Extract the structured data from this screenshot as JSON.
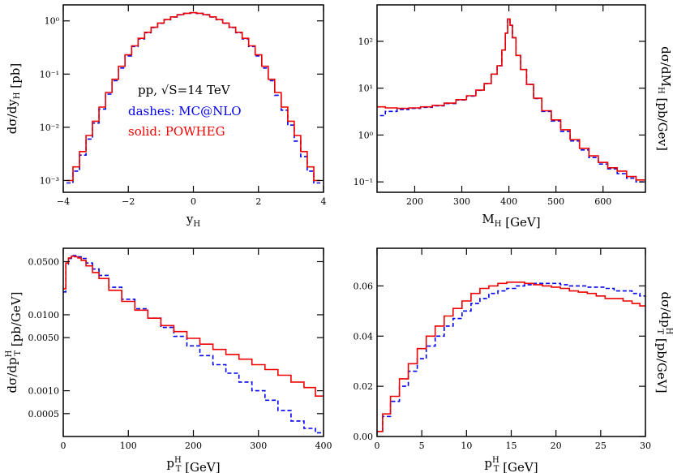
{
  "colors": {
    "mcatnlo": "#0000ee",
    "powheg": "#ee0000",
    "axis": "#000000"
  },
  "annotation": {
    "line1": "pp, √S=14 TeV",
    "line2": "dashes: MC@NLO",
    "line3": "solid: POWHEG"
  },
  "chart_data": [
    {
      "type": "line",
      "xlabel": "y",
      "xlabel_sub": "H",
      "ylabel": "dσ/dy",
      "ylabel_sub": "H",
      "ylabel_unit": "[pb]",
      "yscale": "log",
      "xlim": [
        -4,
        4
      ],
      "ylim": [
        0.0006,
        2.0
      ],
      "x_ticks": [
        -4,
        -2,
        0,
        2,
        4
      ],
      "x_tick_labels": [
        "−4",
        "−2",
        "0",
        "2",
        "4"
      ],
      "y_ticks": [
        0.001,
        0.01,
        0.1,
        1
      ],
      "y_tick_labels": [
        "10⁻³",
        "10⁻²",
        "10⁻¹",
        "10⁰"
      ],
      "draw": "step",
      "series": [
        {
          "name": "MC@NLO",
          "style": "dashed",
          "x": [
            -3.8,
            -3.6,
            -3.4,
            -3.2,
            -3.0,
            -2.8,
            -2.6,
            -2.4,
            -2.2,
            -2.0,
            -1.8,
            -1.6,
            -1.4,
            -1.2,
            -1.0,
            -0.8,
            -0.6,
            -0.4,
            -0.2,
            0.0,
            0.2,
            0.4,
            0.6,
            0.8,
            1.0,
            1.2,
            1.4,
            1.6,
            1.8,
            2.0,
            2.2,
            2.4,
            2.6,
            2.8,
            3.0,
            3.2,
            3.4,
            3.6,
            3.8
          ],
          "y": [
            0.0009,
            0.0015,
            0.003,
            0.006,
            0.012,
            0.022,
            0.042,
            0.075,
            0.13,
            0.22,
            0.33,
            0.46,
            0.6,
            0.75,
            0.9,
            1.05,
            1.18,
            1.3,
            1.38,
            1.42,
            1.38,
            1.3,
            1.18,
            1.05,
            0.9,
            0.75,
            0.6,
            0.46,
            0.33,
            0.22,
            0.13,
            0.075,
            0.04,
            0.021,
            0.011,
            0.0055,
            0.0028,
            0.0015,
            0.0009
          ]
        },
        {
          "name": "POWHEG",
          "style": "solid",
          "x": [
            -3.8,
            -3.6,
            -3.4,
            -3.2,
            -3.0,
            -2.8,
            -2.6,
            -2.4,
            -2.2,
            -2.0,
            -1.8,
            -1.6,
            -1.4,
            -1.2,
            -1.0,
            -0.8,
            -0.6,
            -0.4,
            -0.2,
            0.0,
            0.2,
            0.4,
            0.6,
            0.8,
            1.0,
            1.2,
            1.4,
            1.6,
            1.8,
            2.0,
            2.2,
            2.4,
            2.6,
            2.8,
            3.0,
            3.2,
            3.4,
            3.6,
            3.8
          ],
          "y": [
            0.001,
            0.0018,
            0.0035,
            0.007,
            0.013,
            0.024,
            0.045,
            0.08,
            0.14,
            0.23,
            0.34,
            0.47,
            0.61,
            0.76,
            0.91,
            1.06,
            1.19,
            1.31,
            1.39,
            1.43,
            1.39,
            1.31,
            1.19,
            1.06,
            0.91,
            0.76,
            0.61,
            0.47,
            0.34,
            0.23,
            0.14,
            0.08,
            0.045,
            0.024,
            0.013,
            0.007,
            0.0035,
            0.0018,
            0.001
          ]
        }
      ]
    },
    {
      "type": "line",
      "xlabel": "M",
      "xlabel_sub": "H",
      "xlabel_unit": "[GeV]",
      "ylabel": "dσ/dM",
      "ylabel_sub": "H",
      "ylabel_unit": "[pb/Gev]",
      "ylabel_side": "right",
      "yscale": "log",
      "xlim": [
        120,
        690
      ],
      "ylim": [
        0.06,
        600
      ],
      "x_ticks": [
        200,
        300,
        400,
        500,
        600
      ],
      "x_tick_labels": [
        "200",
        "300",
        "400",
        "500",
        "600"
      ],
      "y_ticks": [
        0.1,
        1,
        10,
        100
      ],
      "y_tick_labels": [
        "10⁻¹",
        "10⁰",
        "10¹",
        "10²"
      ],
      "draw": "step",
      "series": [
        {
          "name": "MC@NLO",
          "style": "dashed",
          "x": [
            125,
            150,
            175,
            200,
            225,
            250,
            275,
            300,
            320,
            340,
            355,
            370,
            380,
            390,
            395,
            400,
            405,
            410,
            420,
            430,
            445,
            460,
            480,
            500,
            520,
            540,
            560,
            580,
            600,
            620,
            640,
            660,
            680
          ],
          "y": [
            2.6,
            3.2,
            3.5,
            3.7,
            3.9,
            4.2,
            4.7,
            5.6,
            6.8,
            9.0,
            12.5,
            20,
            30,
            65,
            150,
            300,
            220,
            120,
            50,
            25,
            12,
            6,
            3.2,
            2.0,
            1.2,
            0.75,
            0.48,
            0.33,
            0.24,
            0.19,
            0.15,
            0.12,
            0.1
          ]
        },
        {
          "name": "POWHEG",
          "style": "solid",
          "x": [
            125,
            150,
            175,
            200,
            225,
            250,
            275,
            300,
            320,
            340,
            355,
            370,
            380,
            390,
            395,
            400,
            405,
            410,
            420,
            430,
            445,
            460,
            480,
            500,
            520,
            540,
            560,
            580,
            600,
            620,
            640,
            660,
            680
          ],
          "y": [
            4.0,
            3.8,
            3.7,
            3.8,
            4.0,
            4.3,
            4.8,
            5.7,
            6.9,
            9.1,
            12.6,
            20,
            30,
            65,
            150,
            300,
            220,
            120,
            50,
            25,
            12,
            6.1,
            3.3,
            2.1,
            1.3,
            0.8,
            0.52,
            0.36,
            0.26,
            0.2,
            0.17,
            0.13,
            0.11
          ]
        }
      ]
    },
    {
      "type": "line",
      "xlabel": "p",
      "xlabel_sub": "T",
      "xlabel_sup": "H",
      "xlabel_unit": "[GeV]",
      "ylabel": "dσ/dp",
      "ylabel_sub": "T",
      "ylabel_sup": "H",
      "ylabel_unit": "[pb/GeV]",
      "yscale": "log",
      "xlim": [
        0,
        400
      ],
      "ylim": [
        0.00025,
        0.075
      ],
      "x_ticks": [
        0,
        100,
        200,
        300,
        400
      ],
      "x_tick_labels": [
        "0",
        "100",
        "200",
        "300",
        "400"
      ],
      "y_ticks": [
        0.0005,
        0.001,
        0.005,
        0.01,
        0.05
      ],
      "y_tick_labels": [
        "0.0005",
        "0.0010",
        "0.0050",
        "0.0100",
        "0.0500"
      ],
      "draw": "step",
      "series": [
        {
          "name": "MC@NLO",
          "style": "dashed",
          "x": [
            2,
            6,
            10,
            15,
            20,
            25,
            30,
            40,
            50,
            60,
            80,
            100,
            120,
            140,
            160,
            180,
            200,
            220,
            240,
            260,
            280,
            300,
            320,
            340,
            360,
            380,
            395
          ],
          "y": [
            0.02,
            0.045,
            0.055,
            0.06,
            0.06,
            0.058,
            0.055,
            0.048,
            0.04,
            0.033,
            0.023,
            0.016,
            0.012,
            0.009,
            0.0068,
            0.0052,
            0.0039,
            0.0029,
            0.0022,
            0.0017,
            0.0013,
            0.001,
            0.00075,
            0.00055,
            0.0004,
            0.00032,
            0.00028
          ]
        },
        {
          "name": "POWHEG",
          "style": "solid",
          "x": [
            2,
            6,
            10,
            15,
            20,
            25,
            30,
            40,
            50,
            60,
            80,
            100,
            120,
            140,
            160,
            180,
            200,
            220,
            240,
            260,
            280,
            300,
            320,
            340,
            360,
            380,
            395
          ],
          "y": [
            0.022,
            0.048,
            0.056,
            0.059,
            0.058,
            0.056,
            0.052,
            0.044,
            0.036,
            0.03,
            0.021,
            0.015,
            0.0115,
            0.009,
            0.0072,
            0.006,
            0.0049,
            0.0041,
            0.0035,
            0.003,
            0.0026,
            0.0022,
            0.0019,
            0.0016,
            0.0013,
            0.0011,
            0.00085
          ]
        }
      ]
    },
    {
      "type": "line",
      "xlabel": "p",
      "xlabel_sub": "T",
      "xlabel_sup": "H",
      "xlabel_unit": "[GeV]",
      "ylabel": "dσ/dp",
      "ylabel_sub": "T",
      "ylabel_sup": "H",
      "ylabel_unit": "[pb/GeV]",
      "ylabel_side": "right",
      "yscale": "linear",
      "xlim": [
        0,
        30
      ],
      "ylim": [
        0,
        0.075
      ],
      "x_ticks": [
        0,
        5,
        10,
        15,
        20,
        25,
        30
      ],
      "x_tick_labels": [
        "0",
        "5",
        "10",
        "15",
        "20",
        "25",
        "30"
      ],
      "y_ticks": [
        0,
        0.02,
        0.04,
        0.06
      ],
      "y_tick_labels": [
        "0.00",
        "0.02",
        "0.04",
        "0.06"
      ],
      "draw": "step",
      "series": [
        {
          "name": "MC@NLO",
          "style": "dashed",
          "x": [
            0.25,
            1,
            2,
            3,
            4,
            5,
            6,
            7,
            8,
            9,
            10,
            11,
            12,
            13,
            14,
            15,
            16,
            17,
            18,
            19,
            20,
            21,
            22,
            23,
            24,
            25,
            26,
            27,
            28,
            29,
            29.75
          ],
          "y": [
            0.002,
            0.008,
            0.014,
            0.02,
            0.026,
            0.031,
            0.036,
            0.04,
            0.044,
            0.047,
            0.05,
            0.053,
            0.055,
            0.057,
            0.058,
            0.059,
            0.06,
            0.0605,
            0.061,
            0.061,
            0.061,
            0.0605,
            0.06,
            0.06,
            0.0595,
            0.0595,
            0.059,
            0.058,
            0.058,
            0.057,
            0.056
          ]
        },
        {
          "name": "POWHEG",
          "style": "solid",
          "x": [
            0.25,
            1,
            2,
            3,
            4,
            5,
            6,
            7,
            8,
            9,
            10,
            11,
            12,
            13,
            14,
            15,
            16,
            17,
            18,
            19,
            20,
            21,
            22,
            23,
            24,
            25,
            26,
            27,
            28,
            29,
            29.75
          ],
          "y": [
            0.002,
            0.009,
            0.016,
            0.023,
            0.029,
            0.035,
            0.04,
            0.044,
            0.048,
            0.051,
            0.054,
            0.057,
            0.059,
            0.06,
            0.061,
            0.0615,
            0.0615,
            0.061,
            0.0605,
            0.06,
            0.0595,
            0.059,
            0.058,
            0.0575,
            0.057,
            0.056,
            0.055,
            0.055,
            0.054,
            0.053,
            0.052
          ]
        }
      ]
    }
  ]
}
